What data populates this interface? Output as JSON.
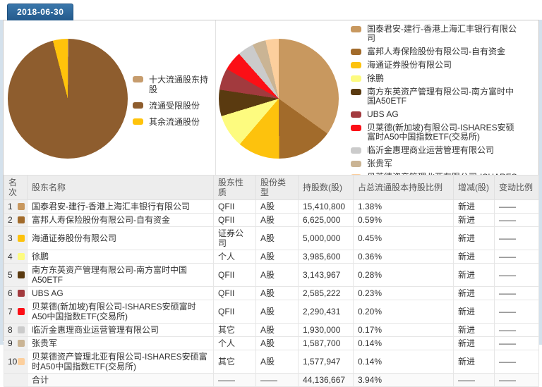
{
  "date_tab": "2018-06-30",
  "chart_data": [
    {
      "type": "pie",
      "title": "",
      "legend_position": "right",
      "note": "share-capital structure pie; slice sizes estimated from pixels",
      "slices": [
        {
          "label": "十大流通股东持股",
          "color": "#c69c6d",
          "pct_of_pie_est": 0.2
        },
        {
          "label": "流通受限股份",
          "color": "#8e5d2e",
          "pct_of_pie_est": 95.8
        },
        {
          "label": "其余流通股份",
          "color": "#ffc30b",
          "pct_of_pie_est": 4.0
        }
      ]
    },
    {
      "type": "pie",
      "title": "",
      "legend_position": "right",
      "note": "top-10 circulating shareholders; values = shares held",
      "slices": [
        {
          "label": "国泰君安-建行-香港上海汇丰银行有限公司",
          "color": "#c8985f",
          "value": 15410800
        },
        {
          "label": "富邦人寿保险股份有限公司-自有资金",
          "color": "#a26b2b",
          "value": 6625000
        },
        {
          "label": "海通证券股份有限公司",
          "color": "#fdc20d",
          "value": 5000000
        },
        {
          "label": "徐鹏",
          "color": "#fdfb7f",
          "value": 3985600
        },
        {
          "label": "南方东英资产管理有限公司-南方富时中国A50ETF",
          "color": "#5a3a10",
          "value": 3143967
        },
        {
          "label": "UBS AG",
          "color": "#a23a3e",
          "value": 2585222
        },
        {
          "label": "贝莱德(新加坡)有限公司-ISHARES安硕富时A50中国指数ETF(交易所)",
          "color": "#fc0f16",
          "value": 2290431
        },
        {
          "label": "临沂金惠理商业运营管理有限公司",
          "color": "#cbcbcb",
          "value": 1930000
        },
        {
          "label": "张贵军",
          "color": "#cab494",
          "value": 1587700
        },
        {
          "label": "贝莱德资产管理北亚有限公司-ISHARES安硕富时A50中国指数ETF(交易所)",
          "color": "#fccf9d",
          "value": 1577947
        }
      ]
    }
  ],
  "table": {
    "columns": [
      "名次",
      "股东名称",
      "股东性质",
      "股份类型",
      "持股数(股)",
      "占总流通股本持股比例",
      "增减(股)",
      "变动比例"
    ],
    "total_label": "合计",
    "rows": [
      {
        "rank": "1",
        "swatch": "#c8985f",
        "name": "国泰君安-建行-香港上海汇丰银行有限公司",
        "nature": "QFII",
        "type": "A股",
        "shares": "15,410,800",
        "pct": "1.38%",
        "change": "新进",
        "ratio": "——"
      },
      {
        "rank": "2",
        "swatch": "#a26b2b",
        "name": "富邦人寿保险股份有限公司-自有资金",
        "nature": "QFII",
        "type": "A股",
        "shares": "6,625,000",
        "pct": "0.59%",
        "change": "新进",
        "ratio": "——"
      },
      {
        "rank": "3",
        "swatch": "#fdc20d",
        "name": "海通证券股份有限公司",
        "nature": "证券公司",
        "type": "A股",
        "shares": "5,000,000",
        "pct": "0.45%",
        "change": "新进",
        "ratio": "——"
      },
      {
        "rank": "4",
        "swatch": "#fdfb7f",
        "name": "徐鹏",
        "nature": "个人",
        "type": "A股",
        "shares": "3,985,600",
        "pct": "0.36%",
        "change": "新进",
        "ratio": "——"
      },
      {
        "rank": "5",
        "swatch": "#5a3a10",
        "name": "南方东英资产管理有限公司-南方富时中国A50ETF",
        "nature": "QFII",
        "type": "A股",
        "shares": "3,143,967",
        "pct": "0.28%",
        "change": "新进",
        "ratio": "——"
      },
      {
        "rank": "6",
        "swatch": "#a23a3e",
        "name": "UBS AG",
        "nature": "QFII",
        "type": "A股",
        "shares": "2,585,222",
        "pct": "0.23%",
        "change": "新进",
        "ratio": "——"
      },
      {
        "rank": "7",
        "swatch": "#fc0f16",
        "name": "贝莱德(新加坡)有限公司-ISHARES安硕富时A50中国指数ETF(交易所)",
        "nature": "QFII",
        "type": "A股",
        "shares": "2,290,431",
        "pct": "0.20%",
        "change": "新进",
        "ratio": "——"
      },
      {
        "rank": "8",
        "swatch": "#cbcbcb",
        "name": "临沂金惠理商业运营管理有限公司",
        "nature": "其它",
        "type": "A股",
        "shares": "1,930,000",
        "pct": "0.17%",
        "change": "新进",
        "ratio": "——"
      },
      {
        "rank": "9",
        "swatch": "#cab494",
        "name": "张贵军",
        "nature": "个人",
        "type": "A股",
        "shares": "1,587,700",
        "pct": "0.14%",
        "change": "新进",
        "ratio": "——"
      },
      {
        "rank": "10",
        "swatch": "#fccf9d",
        "name": "贝莱德资产管理北亚有限公司-ISHARES安硕富时A50中国指数ETF(交易所)",
        "nature": "其它",
        "type": "A股",
        "shares": "1,577,947",
        "pct": "0.14%",
        "change": "新进",
        "ratio": "——"
      },
      {
        "rank": "",
        "swatch": null,
        "name": "合计",
        "nature": "——",
        "type": "——",
        "shares": "44,136,667",
        "pct": "3.94%",
        "change": "——",
        "ratio": "——"
      }
    ]
  }
}
